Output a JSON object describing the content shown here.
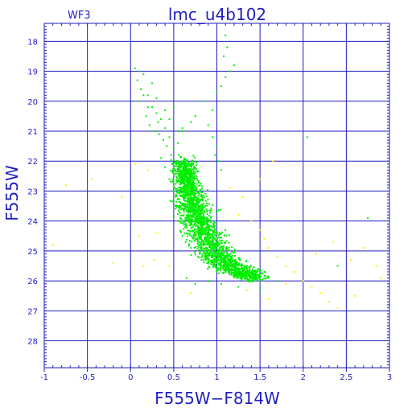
{
  "chart_data": {
    "type": "scatter",
    "title": "lmc_u4b102",
    "corner_label": "WF3",
    "xlabel": "F555W−F814W",
    "ylabel": "F555W",
    "xlim": [
      -1,
      3
    ],
    "ylim": [
      28.9,
      17.4
    ],
    "y_inverted": true,
    "grid": true,
    "x_ticks": [
      -1,
      -0.5,
      0,
      0.5,
      1,
      1.5,
      2,
      2.5,
      3
    ],
    "x_tick_labels": [
      "-1",
      "-0.5",
      "0",
      "0.5",
      "1",
      "1.5",
      "2",
      "2.5",
      "3"
    ],
    "y_ticks": [
      18,
      19,
      20,
      21,
      22,
      23,
      24,
      25,
      26,
      27,
      28
    ],
    "y_tick_labels": [
      "18",
      "19",
      "20",
      "21",
      "22",
      "23",
      "24",
      "25",
      "26",
      "27",
      "28"
    ],
    "series": [
      {
        "color": "#00ee00",
        "description_ms": [
          [
            0.62,
            22.0,
            0.22
          ],
          [
            0.65,
            22.5,
            0.22
          ],
          [
            0.68,
            23.0,
            0.25
          ],
          [
            0.72,
            23.5,
            0.28
          ],
          [
            0.78,
            24.0,
            0.3
          ],
          [
            0.86,
            24.5,
            0.32
          ],
          [
            0.97,
            25.0,
            0.33
          ],
          [
            1.1,
            25.4,
            0.32
          ],
          [
            1.25,
            25.7,
            0.3
          ],
          [
            1.45,
            25.9,
            0.22
          ]
        ],
        "points": [
          [
            0.05,
            18.9
          ],
          [
            0.1,
            19.0
          ],
          [
            0.15,
            19.1
          ],
          [
            0.08,
            19.3
          ],
          [
            0.12,
            19.6
          ],
          [
            0.2,
            19.8
          ],
          [
            0.1,
            20.0
          ],
          [
            0.25,
            20.2
          ],
          [
            0.3,
            20.4
          ],
          [
            0.18,
            20.5
          ],
          [
            0.35,
            20.6
          ],
          [
            0.22,
            20.8
          ],
          [
            0.4,
            20.9
          ],
          [
            0.28,
            21.0
          ],
          [
            0.33,
            21.1
          ],
          [
            0.45,
            21.2
          ],
          [
            0.38,
            21.3
          ],
          [
            0.42,
            21.5
          ],
          [
            0.5,
            21.6
          ],
          [
            0.47,
            21.8
          ],
          [
            0.55,
            21.4
          ],
          [
            0.6,
            21.0
          ],
          [
            0.75,
            20.5
          ],
          [
            0.85,
            20.0
          ],
          [
            1.05,
            19.5
          ],
          [
            1.1,
            19.2
          ],
          [
            1.15,
            19.0
          ],
          [
            1.2,
            18.8
          ],
          [
            1.08,
            18.5
          ],
          [
            1.12,
            18.2
          ],
          [
            1.0,
            19.7
          ],
          [
            0.95,
            20.3
          ],
          [
            0.9,
            20.8
          ],
          [
            1.0,
            21.5
          ],
          [
            0.98,
            21.8
          ],
          [
            1.02,
            22.0
          ],
          [
            1.05,
            22.3
          ],
          [
            0.95,
            21.2
          ],
          [
            1.1,
            17.8
          ],
          [
            0.7,
            20.7
          ],
          [
            0.3,
            19.9
          ],
          [
            0.2,
            20.2
          ],
          [
            0.4,
            20.3
          ],
          [
            0.6,
            20.9
          ],
          [
            0.5,
            20.2
          ],
          [
            0.25,
            19.4
          ],
          [
            0.15,
            19.8
          ],
          [
            0.32,
            20.7
          ],
          [
            0.45,
            20.6
          ],
          [
            0.55,
            21.0
          ],
          [
            0.48,
            22.1
          ],
          [
            0.52,
            22.3
          ],
          [
            0.56,
            22.6
          ],
          [
            0.58,
            22.9
          ],
          [
            0.62,
            23.2
          ],
          [
            0.66,
            23.5
          ],
          [
            0.7,
            23.8
          ],
          [
            0.74,
            24.1
          ],
          [
            0.8,
            24.4
          ],
          [
            0.88,
            24.7
          ],
          [
            0.95,
            24.9
          ],
          [
            1.05,
            25.2
          ],
          [
            1.15,
            25.4
          ],
          [
            1.3,
            25.6
          ],
          [
            1.45,
            25.8
          ],
          [
            1.6,
            25.9
          ],
          [
            1.7,
            26.0
          ],
          [
            1.55,
            25.7
          ],
          [
            1.35,
            25.5
          ],
          [
            1.2,
            25.8
          ],
          [
            1.0,
            25.6
          ],
          [
            0.85,
            25.3
          ],
          [
            0.7,
            24.9
          ],
          [
            0.6,
            24.5
          ],
          [
            0.55,
            24.0
          ],
          [
            0.52,
            23.5
          ],
          [
            0.5,
            23.0
          ],
          [
            0.45,
            22.6
          ],
          [
            0.4,
            22.2
          ],
          [
            0.35,
            21.9
          ],
          [
            2.75,
            23.9
          ],
          [
            2.05,
            21.2
          ],
          [
            2.4,
            25.5
          ],
          [
            0.65,
            25.9
          ],
          [
            0.75,
            26.1
          ],
          [
            0.9,
            26.0
          ],
          [
            1.05,
            26.1
          ],
          [
            1.25,
            26.2
          ],
          [
            1.4,
            26.0
          ],
          [
            1.5,
            26.3
          ]
        ]
      },
      {
        "color": "#ffee00",
        "points": [
          [
            -0.9,
            24.8
          ],
          [
            -0.75,
            22.8
          ],
          [
            -0.45,
            22.6
          ],
          [
            -0.1,
            23.2
          ],
          [
            0.05,
            22.1
          ],
          [
            0.2,
            22.3
          ],
          [
            0.1,
            24.5
          ],
          [
            0.3,
            24.4
          ],
          [
            0.27,
            25.3
          ],
          [
            0.15,
            25.5
          ],
          [
            -0.2,
            25.4
          ],
          [
            0.45,
            25.5
          ],
          [
            1.15,
            22.9
          ],
          [
            1.3,
            23.2
          ],
          [
            1.25,
            23.8
          ],
          [
            1.4,
            24.0
          ],
          [
            1.5,
            24.3
          ],
          [
            1.55,
            24.6
          ],
          [
            1.6,
            24.9
          ],
          [
            1.7,
            25.2
          ],
          [
            1.8,
            25.5
          ],
          [
            1.9,
            25.7
          ],
          [
            2.0,
            26.0
          ],
          [
            2.1,
            26.2
          ],
          [
            2.2,
            26.4
          ],
          [
            2.3,
            26.7
          ],
          [
            2.4,
            26.9
          ],
          [
            1.35,
            26.3
          ],
          [
            1.6,
            26.6
          ],
          [
            2.55,
            25.3
          ],
          [
            2.7,
            24.9
          ],
          [
            2.85,
            25.5
          ],
          [
            2.9,
            25.9
          ],
          [
            1.65,
            22.0
          ],
          [
            1.5,
            22.6
          ],
          [
            2.35,
            24.7
          ],
          [
            0.7,
            26.4
          ],
          [
            1.8,
            26.1
          ],
          [
            2.6,
            26.5
          ],
          [
            2.15,
            25.1
          ]
        ]
      }
    ]
  }
}
